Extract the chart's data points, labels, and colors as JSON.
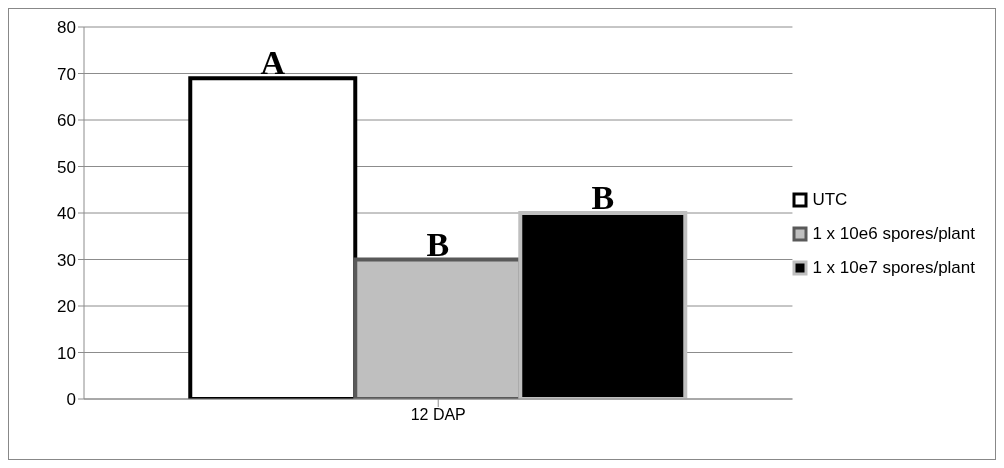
{
  "chart_data": {
    "type": "bar",
    "categories": [
      "12 DAP"
    ],
    "series": [
      {
        "name": "UTC",
        "color": "#ffffff",
        "values": [
          69
        ]
      },
      {
        "name": "1 x 10e6 spores/plant",
        "color": "#bfbfbf",
        "values": [
          30
        ]
      },
      {
        "name": "1 x 10e7 spores/plant",
        "color": "#000000",
        "values": [
          40
        ]
      }
    ],
    "annotations": [
      "A",
      "B",
      "B"
    ],
    "ylim": [
      0,
      80
    ],
    "yticks": [
      0,
      10,
      20,
      30,
      40,
      50,
      60,
      70,
      80
    ],
    "grid": "y",
    "legend": "right"
  }
}
